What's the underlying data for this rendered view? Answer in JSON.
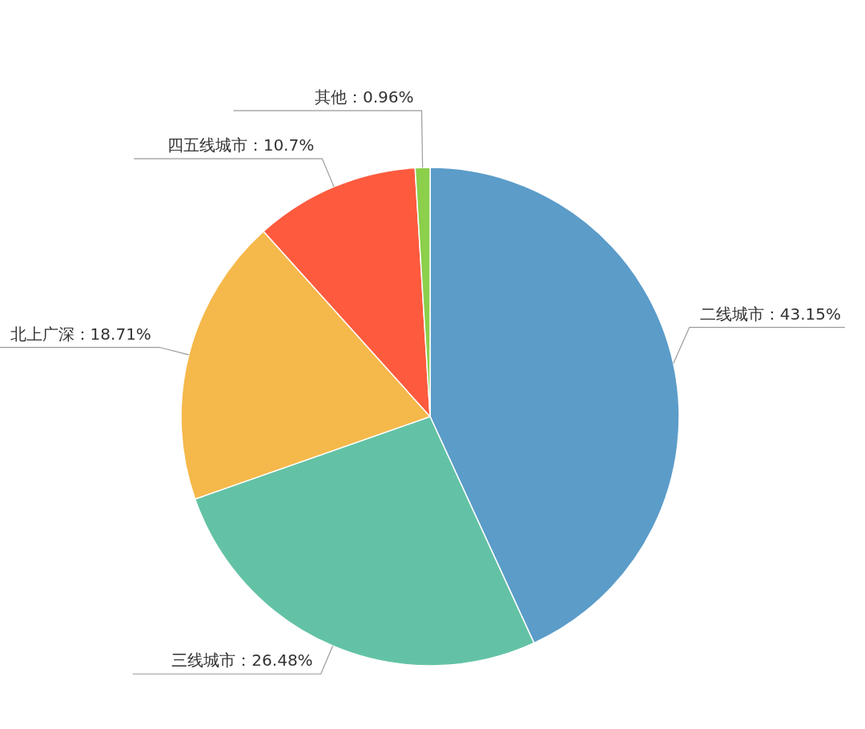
{
  "chart_data": {
    "type": "pie",
    "categories": [
      "二线城市",
      "三线城市",
      "北上广深",
      "四五线城市",
      "其他"
    ],
    "values": [
      43.15,
      26.48,
      18.71,
      10.7,
      0.96
    ],
    "colors": [
      "#5b9cc9",
      "#63c2a5",
      "#f5b84a",
      "#fd5a3e",
      "#8bcf4b"
    ],
    "value_labels": [
      "43.15%",
      "26.48%",
      "18.71%",
      "10.7%",
      "0.96%"
    ]
  }
}
